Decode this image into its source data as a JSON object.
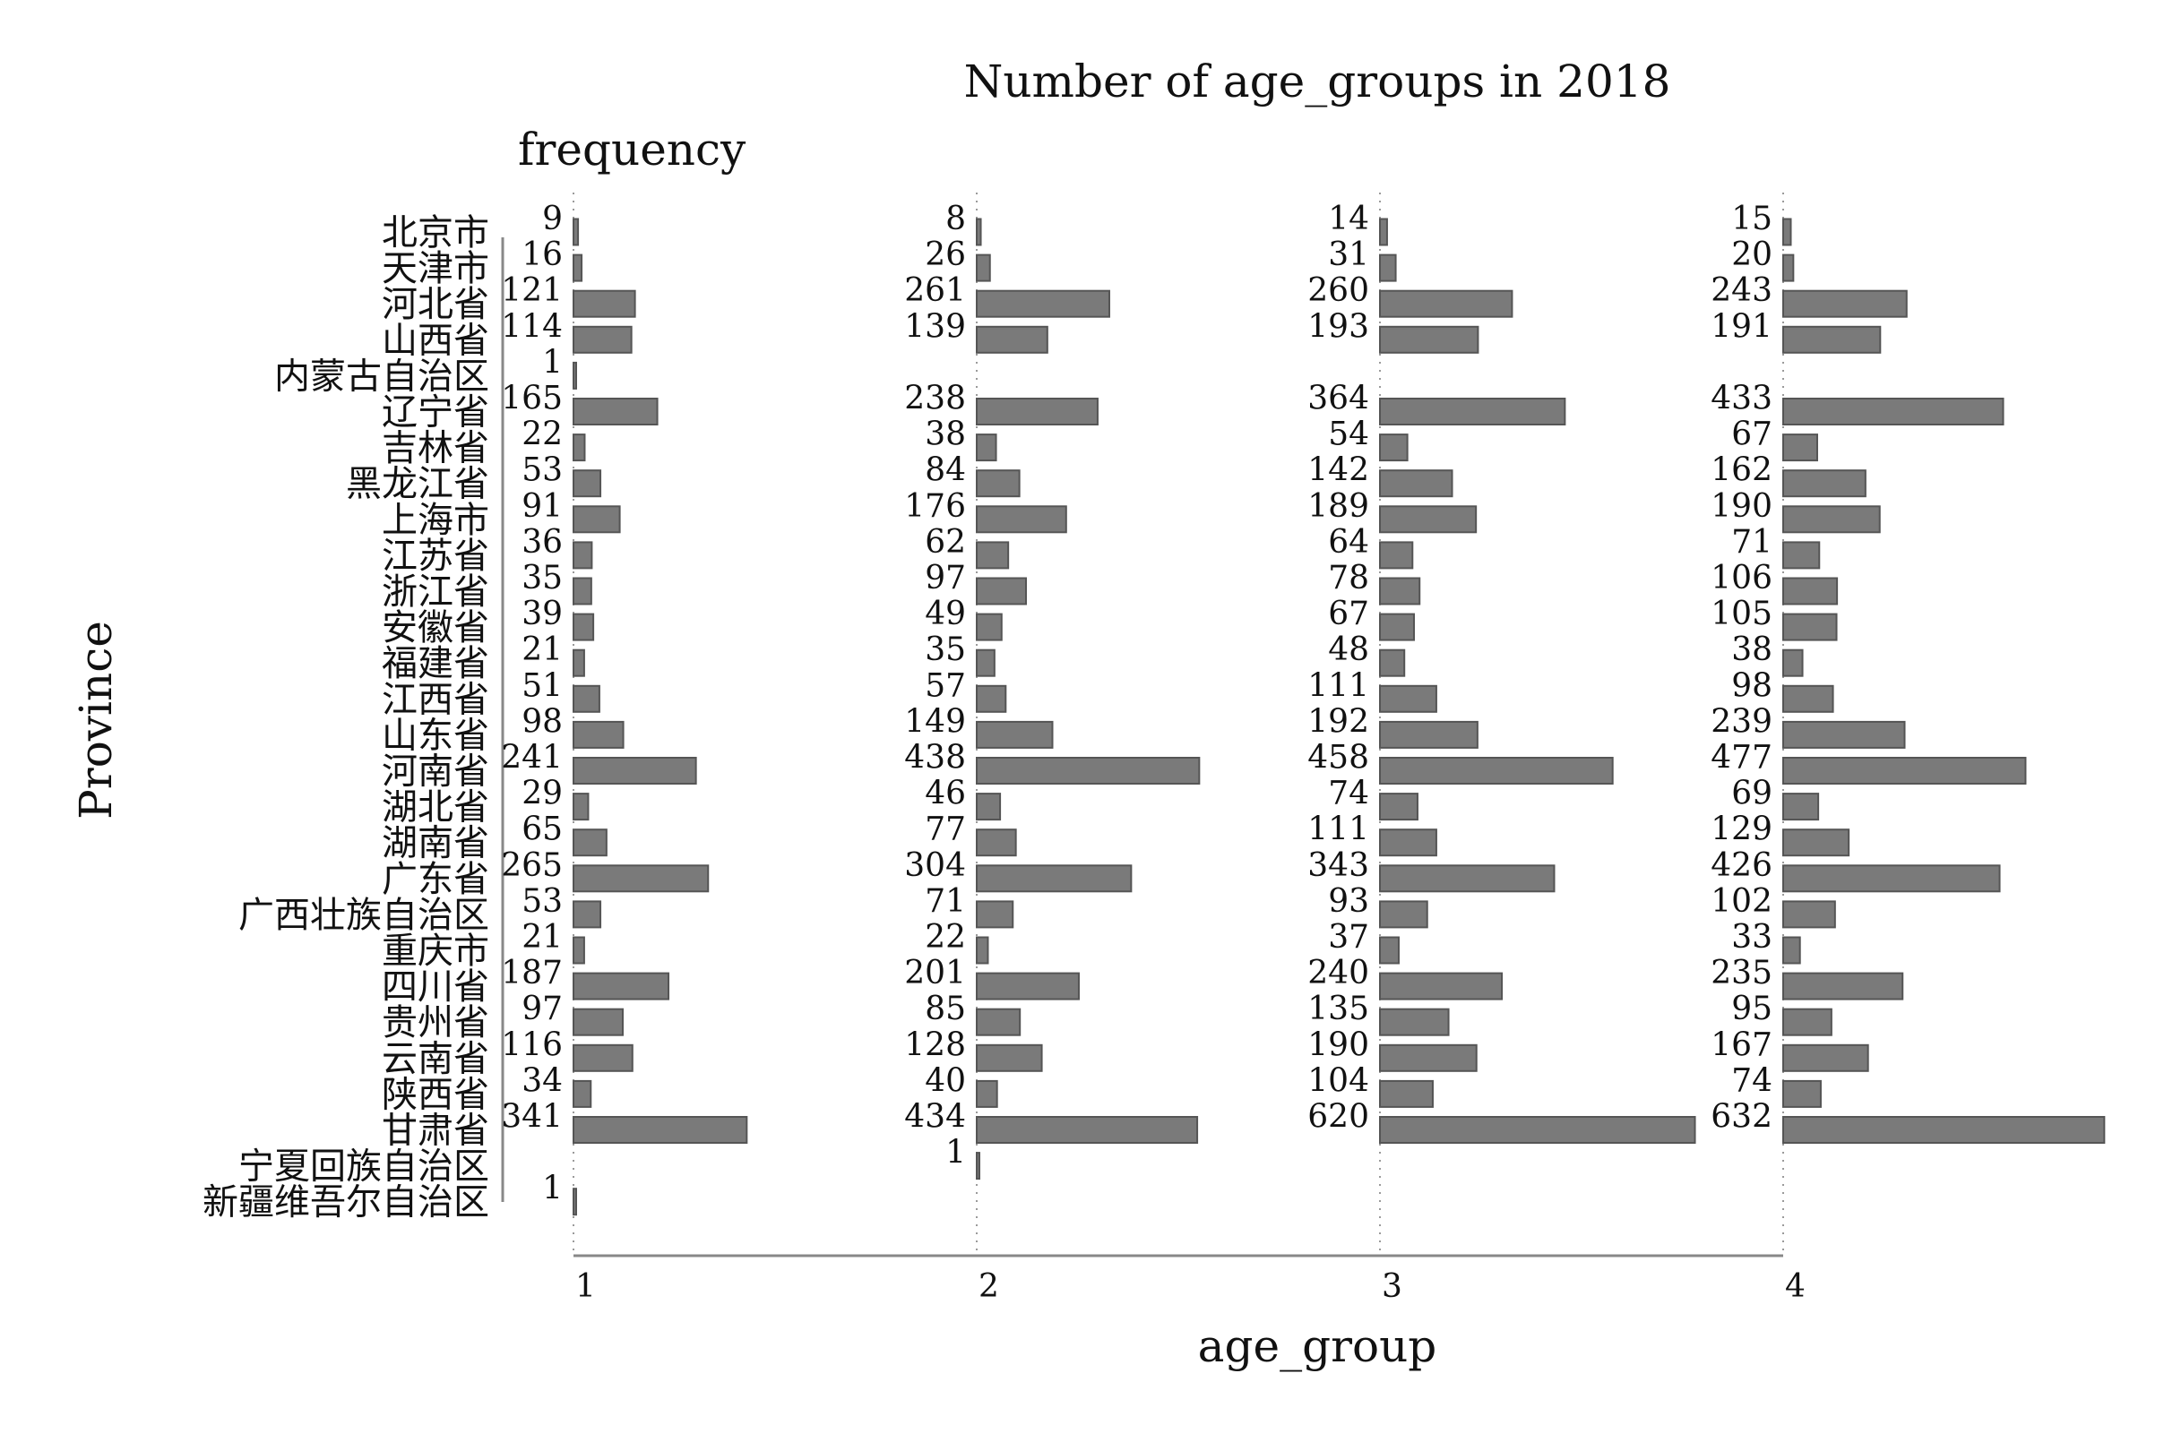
{
  "chart_data": {
    "type": "bar",
    "orientation": "horizontal",
    "layout": "small-multiples",
    "title": "Number of age_groups in 2018",
    "value_label": "frequency",
    "xlabel": "age_group",
    "ylabel": "Province",
    "panel_labels": [
      "1",
      "2",
      "3",
      "4"
    ],
    "grid": "dotted vertical baseline per panel",
    "bar_color": "#7a7a7a",
    "categories": [
      "北京市",
      "天津市",
      "河北省",
      "山西省",
      "内蒙古自治区",
      "辽宁省",
      "吉林省",
      "黑龙江省",
      "上海市",
      "江苏省",
      "浙江省",
      "安徽省",
      "福建省",
      "江西省",
      "山东省",
      "河南省",
      "湖北省",
      "湖南省",
      "广东省",
      "广西壮族自治区",
      "重庆市",
      "四川省",
      "贵州省",
      "云南省",
      "陕西省",
      "甘肃省",
      "宁夏回族自治区",
      "新疆维吾尔自治区"
    ],
    "series": [
      {
        "panel": "1",
        "values": [
          9,
          16,
          121,
          114,
          1,
          165,
          22,
          53,
          91,
          36,
          35,
          39,
          21,
          51,
          98,
          241,
          29,
          65,
          265,
          53,
          21,
          187,
          97,
          116,
          34,
          341,
          null,
          1
        ]
      },
      {
        "panel": "2",
        "values": [
          8,
          26,
          261,
          139,
          null,
          238,
          38,
          84,
          176,
          62,
          97,
          49,
          35,
          57,
          149,
          438,
          46,
          77,
          304,
          71,
          22,
          201,
          85,
          128,
          40,
          434,
          1,
          null
        ]
      },
      {
        "panel": "3",
        "values": [
          14,
          31,
          260,
          193,
          null,
          364,
          54,
          142,
          189,
          64,
          78,
          67,
          48,
          111,
          192,
          458,
          74,
          111,
          343,
          93,
          37,
          240,
          135,
          190,
          104,
          620,
          null,
          null
        ]
      },
      {
        "panel": "4",
        "values": [
          15,
          20,
          243,
          191,
          null,
          433,
          67,
          162,
          190,
          71,
          106,
          105,
          38,
          98,
          239,
          477,
          69,
          129,
          426,
          102,
          33,
          235,
          95,
          167,
          74,
          632,
          null,
          null
        ]
      }
    ]
  }
}
